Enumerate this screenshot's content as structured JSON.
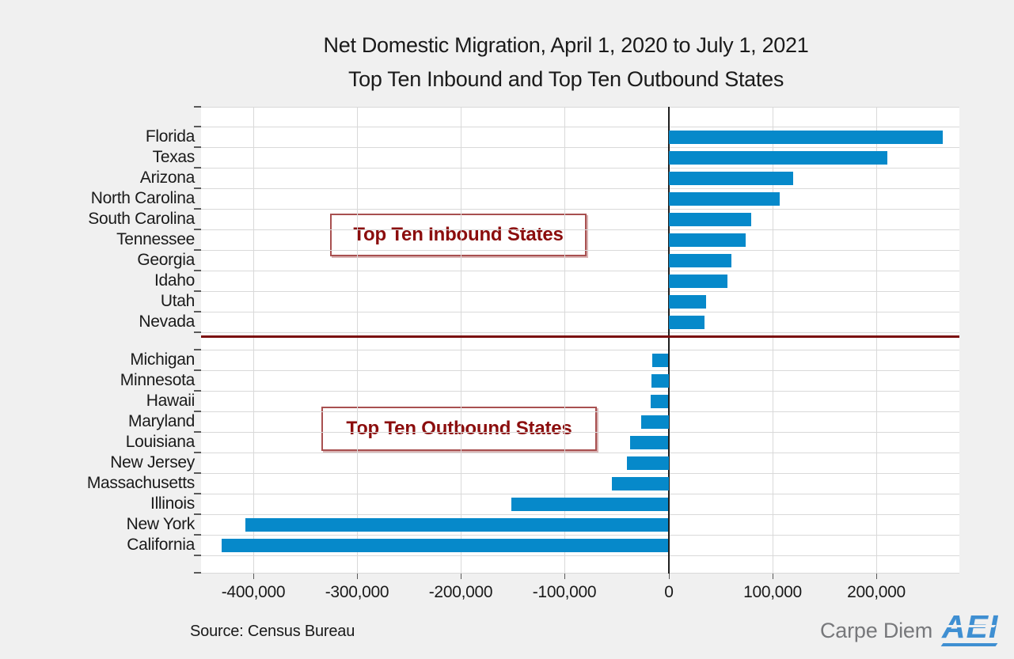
{
  "chart_data": {
    "type": "bar",
    "orientation": "horizontal",
    "title": "Net Domestic Migration, April 1, 2020 to July 1, 2021",
    "subtitle": "Top Ten Inbound and Top Ten Outbound States",
    "xlim": [
      -450000,
      280000
    ],
    "grid": true,
    "legend": "none",
    "x_ticks": [
      {
        "value": -400000,
        "label": "-400,000"
      },
      {
        "value": -300000,
        "label": "-300,000"
      },
      {
        "value": -200000,
        "label": "-200,000"
      },
      {
        "value": -100000,
        "label": "-100,000"
      },
      {
        "value": 0,
        "label": "0"
      },
      {
        "value": 100000,
        "label": "100,000"
      },
      {
        "value": 200000,
        "label": "200,000"
      }
    ],
    "groups": [
      {
        "name": "inbound",
        "annotation": "Top Ten Inbound States",
        "categories": [
          "Florida",
          "Texas",
          "Arizona",
          "North Carolina",
          "South Carolina",
          "Tennessee",
          "Georgia",
          "Idaho",
          "Utah",
          "Nevada"
        ],
        "values": [
          264000,
          211000,
          120000,
          107000,
          79500,
          74000,
          60500,
          56500,
          36000,
          34500
        ]
      },
      {
        "name": "outbound",
        "annotation": "Top Ten Outbound States",
        "categories": [
          "Michigan",
          "Minnesota",
          "Hawaii",
          "Maryland",
          "Louisiana",
          "New Jersey",
          "Massachusetts",
          "Illinois",
          "New York",
          "California"
        ],
        "values": [
          -15800,
          -16600,
          -17400,
          -26700,
          -37200,
          -40200,
          -54500,
          -151500,
          -407000,
          -430000
        ]
      }
    ]
  },
  "footer": {
    "source": "Source: Census Bureau",
    "brand_text": "Carpe Diem",
    "brand_logo": "AEI"
  },
  "colors": {
    "background": "#f0f0f0",
    "plot_background": "#ffffff",
    "bar": "#0689ca",
    "gridline": "#d9d9d9",
    "axis_zero_line": "#1f1f1f",
    "separator_line": "#7b0f0f",
    "annotation_text": "#8b0d0d",
    "annotation_border": "#a85050",
    "tick": "#595959",
    "aei_blue": "#3f8fd2",
    "brand_gray": "#77787b"
  }
}
